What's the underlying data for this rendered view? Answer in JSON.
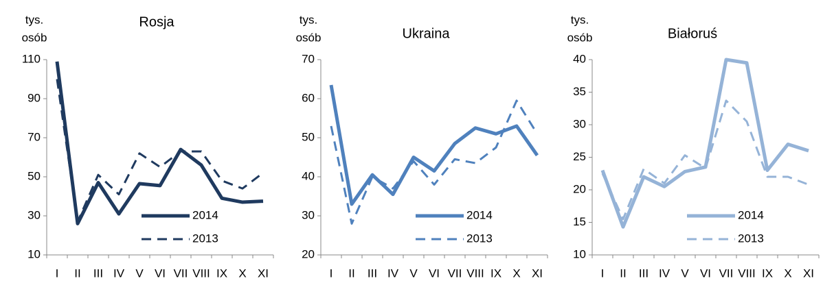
{
  "chart_data": [
    {
      "type": "line",
      "title": "Rosja",
      "y_label": [
        "tys.",
        "osób"
      ],
      "categories": [
        "I",
        "II",
        "III",
        "IV",
        "V",
        "VI",
        "VII",
        "VIII",
        "IX",
        "X",
        "XI"
      ],
      "series": [
        {
          "name": "2014",
          "color": "#1f3a5f",
          "dash": false,
          "values": [
            109,
            26,
            47,
            31,
            46.5,
            45.5,
            64,
            56,
            39,
            37,
            37.5
          ]
        },
        {
          "name": "2013",
          "color": "#1f3a5f",
          "dash": true,
          "values": [
            100,
            27,
            51,
            41,
            62,
            55,
            63,
            63,
            48,
            44,
            52
          ]
        }
      ],
      "ylim": [
        10,
        110
      ],
      "yticks": [
        10,
        30,
        50,
        70,
        90,
        110
      ]
    },
    {
      "type": "line",
      "title": "Ukraina",
      "y_label": [
        "tys.",
        "osób"
      ],
      "categories": [
        "I",
        "II",
        "III",
        "IV",
        "V",
        "VI",
        "VII",
        "VIII",
        "IX",
        "X",
        "XI"
      ],
      "series": [
        {
          "name": "2014",
          "color": "#4f81bd",
          "dash": false,
          "values": [
            63.5,
            33,
            40.5,
            35.5,
            45,
            41.5,
            48.5,
            52.5,
            51,
            53,
            45.5
          ]
        },
        {
          "name": "2013",
          "color": "#4f81bd",
          "dash": true,
          "values": [
            53,
            28,
            40,
            37,
            44,
            38,
            44.5,
            43.5,
            47.5,
            59.5,
            51
          ]
        }
      ],
      "ylim": [
        20,
        70
      ],
      "yticks": [
        20,
        30,
        40,
        50,
        60,
        70
      ]
    },
    {
      "type": "line",
      "title": "Białoruś",
      "y_label": [
        "tys.",
        "osób"
      ],
      "categories": [
        "I",
        "II",
        "III",
        "IV",
        "V",
        "VI",
        "VII",
        "VIII",
        "IX",
        "X",
        "XI"
      ],
      "series": [
        {
          "name": "2014",
          "color": "#95b3d7",
          "dash": false,
          "values": [
            23,
            14.3,
            22,
            20.5,
            22.8,
            23.5,
            40,
            39.5,
            23,
            27,
            26
          ]
        },
        {
          "name": "2013",
          "color": "#95b3d7",
          "dash": true,
          "values": [
            22.5,
            15.5,
            23.2,
            21,
            25.3,
            23.3,
            33.7,
            30.5,
            22,
            22,
            20.8
          ]
        }
      ],
      "ylim": [
        10,
        40
      ],
      "yticks": [
        10,
        15,
        20,
        25,
        30,
        35,
        40
      ]
    }
  ]
}
